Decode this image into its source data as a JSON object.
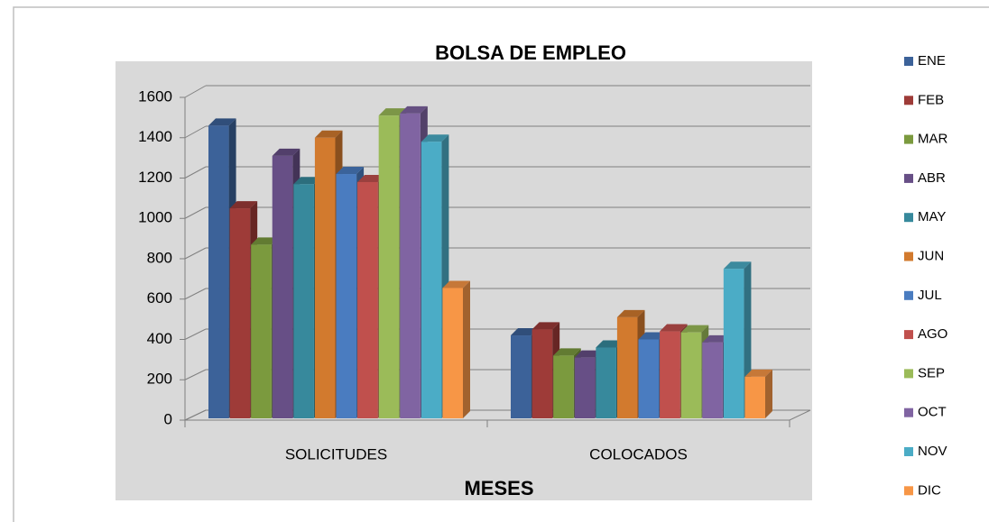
{
  "chart_data": {
    "type": "bar",
    "title": "BOLSA DE EMPLEO",
    "x_label": "MESES",
    "categories": [
      "SOLICITUDES",
      "COLOCADOS"
    ],
    "series": [
      {
        "name": "ENE",
        "color": "#3c6299",
        "values": [
          1460,
          420
        ]
      },
      {
        "name": "FEB",
        "color": "#9e3b38",
        "values": [
          1050,
          450
        ]
      },
      {
        "name": "MAR",
        "color": "#7b9a3e",
        "values": [
          870,
          320
        ]
      },
      {
        "name": "ABR",
        "color": "#674f86",
        "values": [
          1310,
          310
        ]
      },
      {
        "name": "MAY",
        "color": "#37899c",
        "values": [
          1170,
          360
        ]
      },
      {
        "name": "JUN",
        "color": "#d27a2e",
        "values": [
          1400,
          510
        ]
      },
      {
        "name": "JUL",
        "color": "#4a7cc0",
        "values": [
          1220,
          400
        ]
      },
      {
        "name": "AGO",
        "color": "#c0504d",
        "values": [
          1180,
          440
        ]
      },
      {
        "name": "SEP",
        "color": "#9bbb59",
        "values": [
          1510,
          435
        ]
      },
      {
        "name": "OCT",
        "color": "#8064a2",
        "values": [
          1520,
          385
        ]
      },
      {
        "name": "NOV",
        "color": "#4bacc6",
        "values": [
          1380,
          750
        ]
      },
      {
        "name": "DIC",
        "color": "#f79646",
        "values": [
          655,
          215
        ]
      }
    ],
    "ylim": [
      0,
      1600
    ],
    "yticks": [
      0,
      200,
      400,
      600,
      800,
      1000,
      1200,
      1400,
      1600
    ],
    "grid": true,
    "legend": "right"
  }
}
